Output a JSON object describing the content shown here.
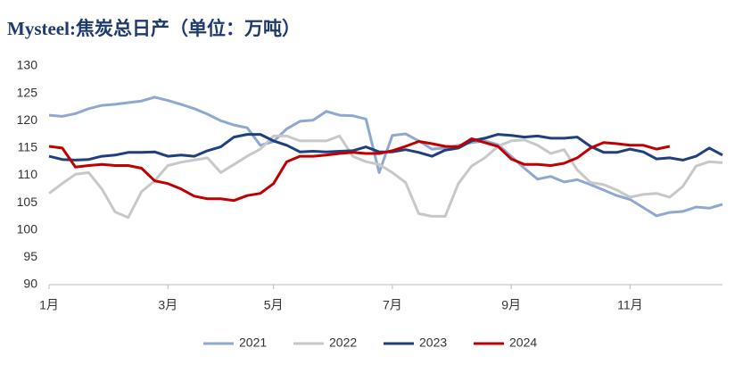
{
  "chart_data": {
    "type": "line",
    "title": "Mysteel:焦炭总日产（单位：万吨）",
    "categories": [
      "1月",
      null,
      null,
      null,
      null,
      null,
      null,
      null,
      null,
      "3月",
      null,
      null,
      null,
      null,
      null,
      null,
      null,
      "5月",
      null,
      null,
      null,
      null,
      null,
      null,
      null,
      null,
      "7月",
      null,
      null,
      null,
      null,
      null,
      null,
      null,
      null,
      "9月",
      null,
      null,
      null,
      null,
      null,
      null,
      null,
      null,
      "11月",
      null,
      null,
      null,
      null,
      null,
      null,
      null
    ],
    "ylim": [
      90,
      130
    ],
    "yticks": [
      90,
      95,
      100,
      105,
      110,
      115,
      120,
      125,
      130
    ],
    "grid": false,
    "legend": "bottom",
    "series": [
      {
        "name": "2021",
        "color": "#8fa8d0",
        "values": [
          121.0,
          120.8,
          121.3,
          122.2,
          122.8,
          123.0,
          123.3,
          123.6,
          124.3,
          123.7,
          123.0,
          122.2,
          121.2,
          120.0,
          119.2,
          118.7,
          115.5,
          116.2,
          118.5,
          119.9,
          120.1,
          121.7,
          121.0,
          120.9,
          120.3,
          110.5,
          117.3,
          117.6,
          116.3,
          114.8,
          115.0,
          115.5,
          116.0,
          116.3,
          115.6,
          113.5,
          111.3,
          109.3,
          109.8,
          108.8,
          109.2,
          108.3,
          107.3,
          106.3,
          105.6,
          104.1,
          102.6,
          103.2,
          103.4,
          104.2,
          104.0,
          104.7
        ]
      },
      {
        "name": "2022",
        "color": "#c8c8c8",
        "values": [
          106.7,
          108.5,
          110.2,
          110.5,
          107.5,
          103.3,
          102.3,
          107.0,
          109.0,
          111.8,
          112.4,
          112.8,
          113.2,
          110.5,
          112.0,
          113.5,
          114.8,
          117.2,
          117.2,
          116.3,
          116.3,
          116.3,
          117.2,
          113.5,
          112.5,
          112.0,
          110.5,
          108.7,
          103.0,
          102.5,
          102.5,
          108.5,
          111.7,
          113.2,
          115.3,
          116.3,
          116.5,
          115.5,
          114.0,
          114.7,
          111.0,
          108.7,
          108.3,
          107.3,
          106.0,
          106.5,
          106.7,
          106.0,
          108.0,
          111.7,
          112.5,
          112.3
        ]
      },
      {
        "name": "2023",
        "color": "#1f3f7f",
        "values": [
          113.5,
          112.9,
          112.8,
          112.9,
          113.5,
          113.7,
          114.2,
          114.2,
          114.3,
          113.5,
          113.7,
          113.5,
          114.5,
          115.2,
          117.0,
          117.5,
          117.5,
          116.3,
          115.5,
          114.3,
          114.4,
          114.3,
          114.4,
          114.5,
          115.2,
          114.3,
          114.3,
          114.7,
          114.2,
          113.5,
          114.6,
          115.0,
          116.3,
          116.8,
          117.5,
          117.3,
          117.0,
          117.2,
          116.8,
          116.8,
          117.0,
          115.3,
          114.2,
          114.2,
          114.8,
          114.3,
          113.0,
          113.2,
          112.8,
          113.5,
          115.0,
          113.7
        ]
      },
      {
        "name": "2024",
        "color": "#c00000",
        "values": [
          115.3,
          115.0,
          111.5,
          111.8,
          112.0,
          111.8,
          111.8,
          111.3,
          109.0,
          108.5,
          107.5,
          106.2,
          105.7,
          105.7,
          105.4,
          106.3,
          106.7,
          108.5,
          112.5,
          113.5,
          113.5,
          113.7,
          114.0,
          114.2,
          114.0,
          114.0,
          114.5,
          115.3,
          116.2,
          115.8,
          115.3,
          115.2,
          116.7,
          116.0,
          115.3,
          113.0,
          112.0,
          112.0,
          111.8,
          112.2,
          113.2,
          115.0,
          116.0,
          115.8,
          115.5,
          115.5,
          114.8,
          115.3,
          null,
          null,
          null,
          null
        ]
      }
    ]
  }
}
